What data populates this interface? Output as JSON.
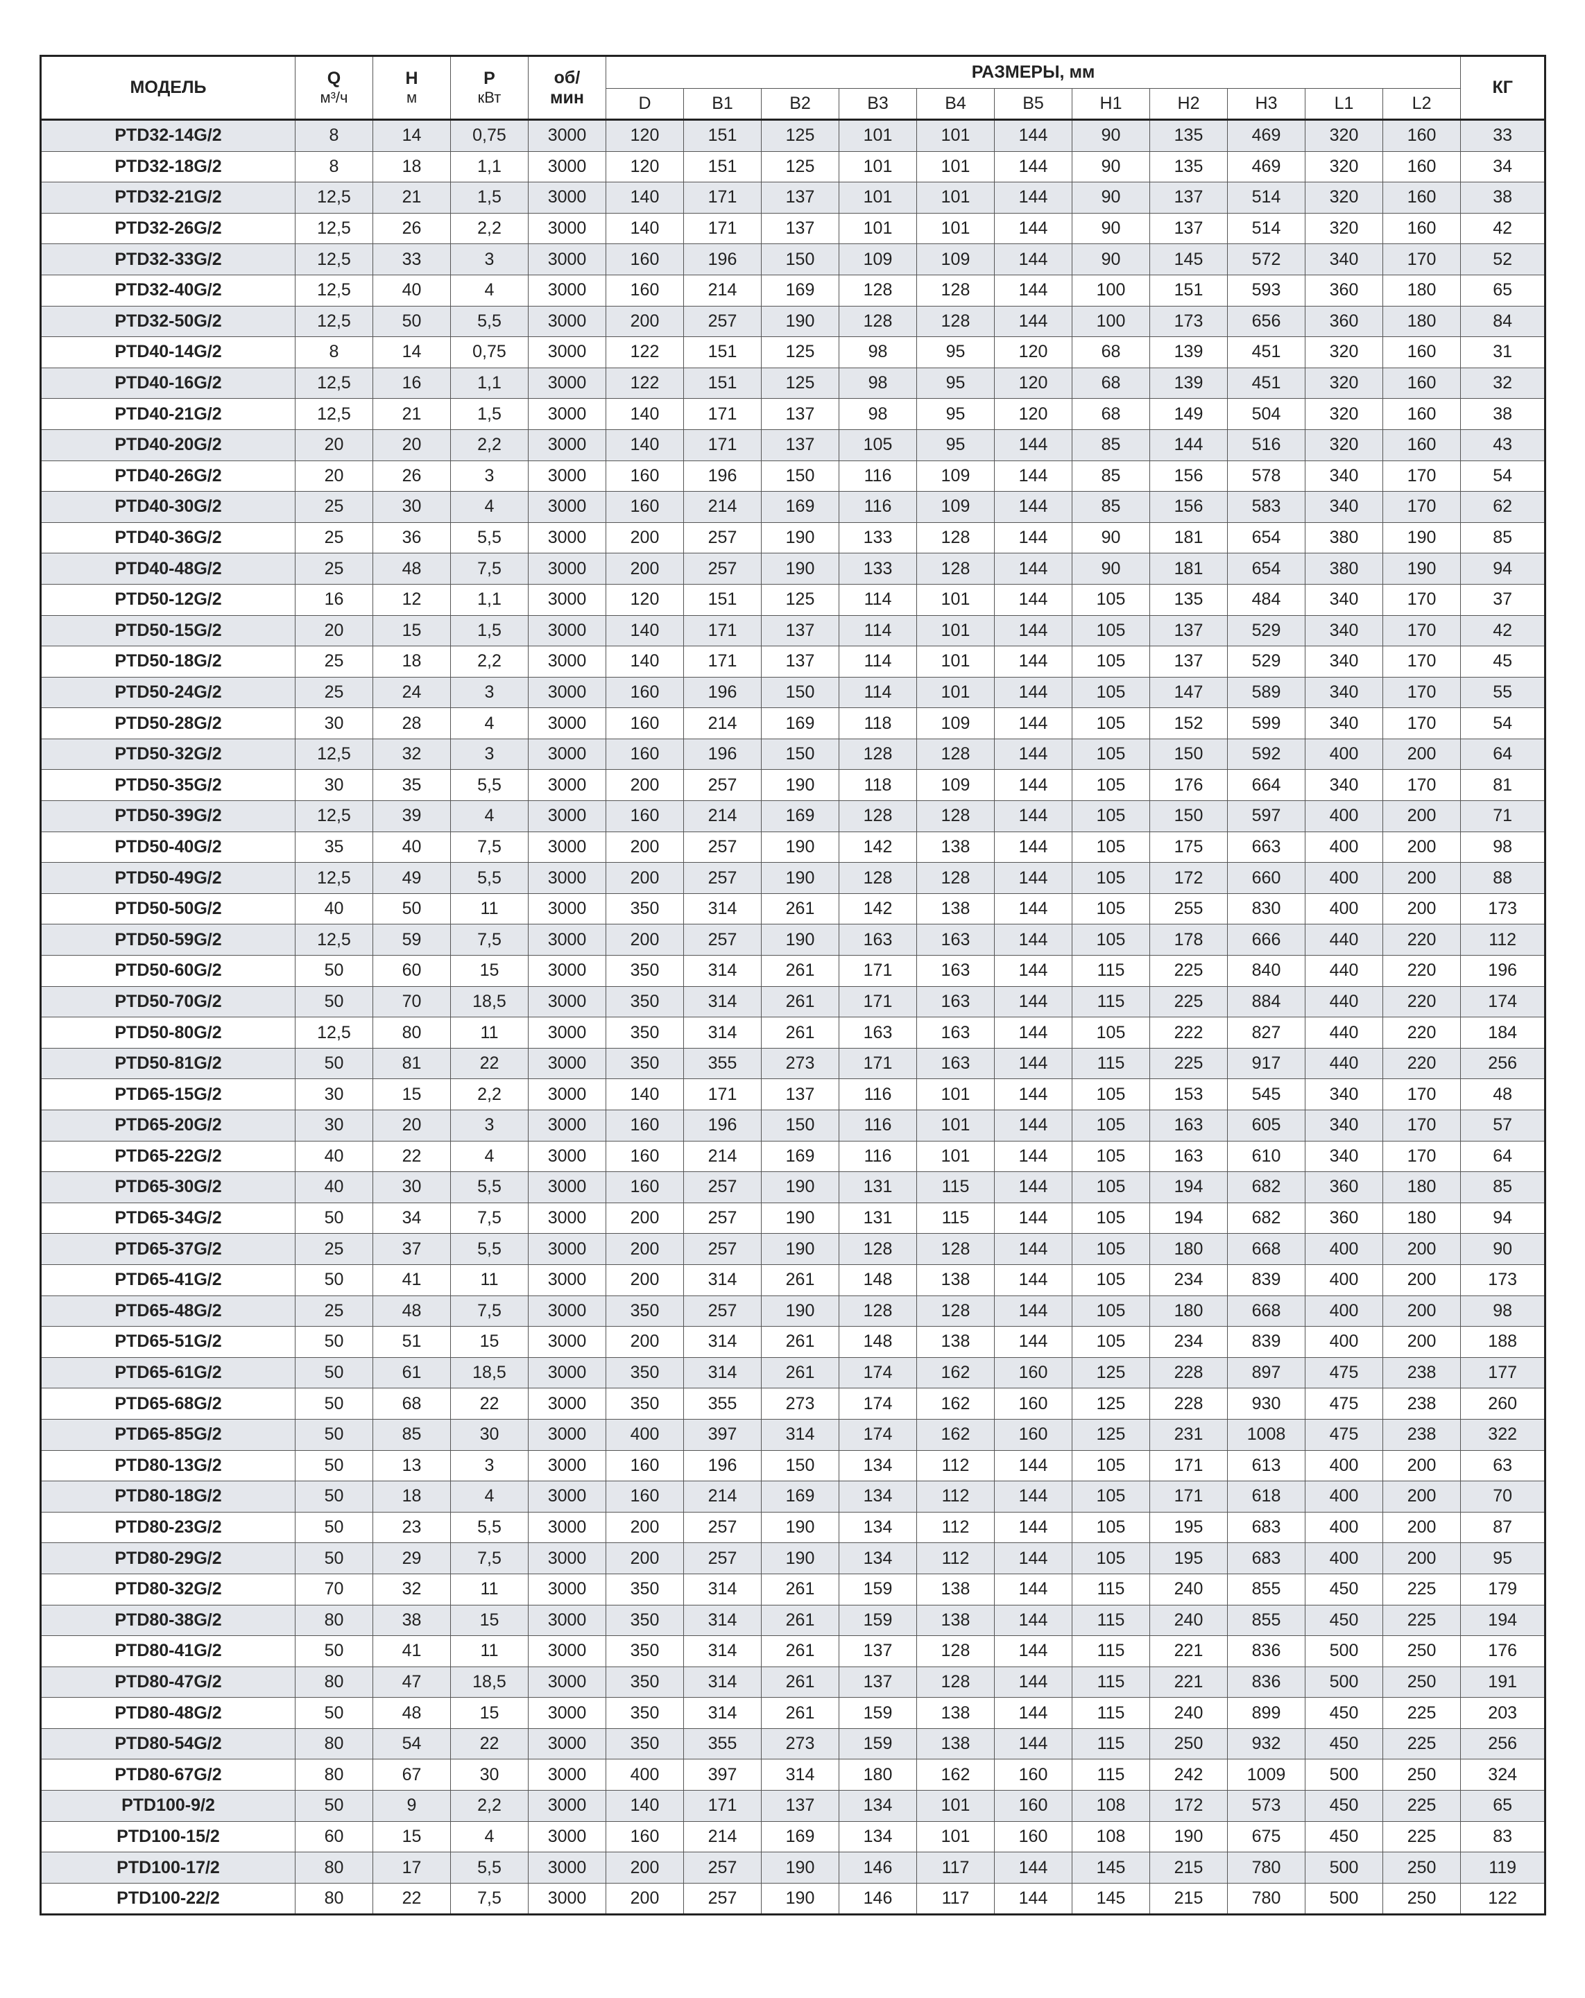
{
  "header": {
    "model": "МОДЕЛЬ",
    "q": "Q",
    "q_unit": "м³/ч",
    "h": "H",
    "h_unit": "м",
    "p": "P",
    "p_unit": "кВт",
    "rpm": "об/",
    "rpm_unit": "мин",
    "dims": "РАЗМЕРЫ, мм",
    "dim_columns": [
      "D",
      "B1",
      "B2",
      "B3",
      "B4",
      "B5",
      "H1",
      "H2",
      "H3",
      "L1",
      "L2"
    ],
    "kg": "КГ"
  },
  "table": {
    "rows": [
      [
        "PTD32-14G/2",
        "8",
        "14",
        "0,75",
        "3000",
        "120",
        "151",
        "125",
        "101",
        "101",
        "144",
        "90",
        "135",
        "469",
        "320",
        "160",
        "33"
      ],
      [
        "PTD32-18G/2",
        "8",
        "18",
        "1,1",
        "3000",
        "120",
        "151",
        "125",
        "101",
        "101",
        "144",
        "90",
        "135",
        "469",
        "320",
        "160",
        "34"
      ],
      [
        "PTD32-21G/2",
        "12,5",
        "21",
        "1,5",
        "3000",
        "140",
        "171",
        "137",
        "101",
        "101",
        "144",
        "90",
        "137",
        "514",
        "320",
        "160",
        "38"
      ],
      [
        "PTD32-26G/2",
        "12,5",
        "26",
        "2,2",
        "3000",
        "140",
        "171",
        "137",
        "101",
        "101",
        "144",
        "90",
        "137",
        "514",
        "320",
        "160",
        "42"
      ],
      [
        "PTD32-33G/2",
        "12,5",
        "33",
        "3",
        "3000",
        "160",
        "196",
        "150",
        "109",
        "109",
        "144",
        "90",
        "145",
        "572",
        "340",
        "170",
        "52"
      ],
      [
        "PTD32-40G/2",
        "12,5",
        "40",
        "4",
        "3000",
        "160",
        "214",
        "169",
        "128",
        "128",
        "144",
        "100",
        "151",
        "593",
        "360",
        "180",
        "65"
      ],
      [
        "PTD32-50G/2",
        "12,5",
        "50",
        "5,5",
        "3000",
        "200",
        "257",
        "190",
        "128",
        "128",
        "144",
        "100",
        "173",
        "656",
        "360",
        "180",
        "84"
      ],
      [
        "PTD40-14G/2",
        "8",
        "14",
        "0,75",
        "3000",
        "122",
        "151",
        "125",
        "98",
        "95",
        "120",
        "68",
        "139",
        "451",
        "320",
        "160",
        "31"
      ],
      [
        "PTD40-16G/2",
        "12,5",
        "16",
        "1,1",
        "3000",
        "122",
        "151",
        "125",
        "98",
        "95",
        "120",
        "68",
        "139",
        "451",
        "320",
        "160",
        "32"
      ],
      [
        "PTD40-21G/2",
        "12,5",
        "21",
        "1,5",
        "3000",
        "140",
        "171",
        "137",
        "98",
        "95",
        "120",
        "68",
        "149",
        "504",
        "320",
        "160",
        "38"
      ],
      [
        "PTD40-20G/2",
        "20",
        "20",
        "2,2",
        "3000",
        "140",
        "171",
        "137",
        "105",
        "95",
        "144",
        "85",
        "144",
        "516",
        "320",
        "160",
        "43"
      ],
      [
        "PTD40-26G/2",
        "20",
        "26",
        "3",
        "3000",
        "160",
        "196",
        "150",
        "116",
        "109",
        "144",
        "85",
        "156",
        "578",
        "340",
        "170",
        "54"
      ],
      [
        "PTD40-30G/2",
        "25",
        "30",
        "4",
        "3000",
        "160",
        "214",
        "169",
        "116",
        "109",
        "144",
        "85",
        "156",
        "583",
        "340",
        "170",
        "62"
      ],
      [
        "PTD40-36G/2",
        "25",
        "36",
        "5,5",
        "3000",
        "200",
        "257",
        "190",
        "133",
        "128",
        "144",
        "90",
        "181",
        "654",
        "380",
        "190",
        "85"
      ],
      [
        "PTD40-48G/2",
        "25",
        "48",
        "7,5",
        "3000",
        "200",
        "257",
        "190",
        "133",
        "128",
        "144",
        "90",
        "181",
        "654",
        "380",
        "190",
        "94"
      ],
      [
        "PTD50-12G/2",
        "16",
        "12",
        "1,1",
        "3000",
        "120",
        "151",
        "125",
        "114",
        "101",
        "144",
        "105",
        "135",
        "484",
        "340",
        "170",
        "37"
      ],
      [
        "PTD50-15G/2",
        "20",
        "15",
        "1,5",
        "3000",
        "140",
        "171",
        "137",
        "114",
        "101",
        "144",
        "105",
        "137",
        "529",
        "340",
        "170",
        "42"
      ],
      [
        "PTD50-18G/2",
        "25",
        "18",
        "2,2",
        "3000",
        "140",
        "171",
        "137",
        "114",
        "101",
        "144",
        "105",
        "137",
        "529",
        "340",
        "170",
        "45"
      ],
      [
        "PTD50-24G/2",
        "25",
        "24",
        "3",
        "3000",
        "160",
        "196",
        "150",
        "114",
        "101",
        "144",
        "105",
        "147",
        "589",
        "340",
        "170",
        "55"
      ],
      [
        "PTD50-28G/2",
        "30",
        "28",
        "4",
        "3000",
        "160",
        "214",
        "169",
        "118",
        "109",
        "144",
        "105",
        "152",
        "599",
        "340",
        "170",
        "54"
      ],
      [
        "PTD50-32G/2",
        "12,5",
        "32",
        "3",
        "3000",
        "160",
        "196",
        "150",
        "128",
        "128",
        "144",
        "105",
        "150",
        "592",
        "400",
        "200",
        "64"
      ],
      [
        "PTD50-35G/2",
        "30",
        "35",
        "5,5",
        "3000",
        "200",
        "257",
        "190",
        "118",
        "109",
        "144",
        "105",
        "176",
        "664",
        "340",
        "170",
        "81"
      ],
      [
        "PTD50-39G/2",
        "12,5",
        "39",
        "4",
        "3000",
        "160",
        "214",
        "169",
        "128",
        "128",
        "144",
        "105",
        "150",
        "597",
        "400",
        "200",
        "71"
      ],
      [
        "PTD50-40G/2",
        "35",
        "40",
        "7,5",
        "3000",
        "200",
        "257",
        "190",
        "142",
        "138",
        "144",
        "105",
        "175",
        "663",
        "400",
        "200",
        "98"
      ],
      [
        "PTD50-49G/2",
        "12,5",
        "49",
        "5,5",
        "3000",
        "200",
        "257",
        "190",
        "128",
        "128",
        "144",
        "105",
        "172",
        "660",
        "400",
        "200",
        "88"
      ],
      [
        "PTD50-50G/2",
        "40",
        "50",
        "11",
        "3000",
        "350",
        "314",
        "261",
        "142",
        "138",
        "144",
        "105",
        "255",
        "830",
        "400",
        "200",
        "173"
      ],
      [
        "PTD50-59G/2",
        "12,5",
        "59",
        "7,5",
        "3000",
        "200",
        "257",
        "190",
        "163",
        "163",
        "144",
        "105",
        "178",
        "666",
        "440",
        "220",
        "112"
      ],
      [
        "PTD50-60G/2",
        "50",
        "60",
        "15",
        "3000",
        "350",
        "314",
        "261",
        "171",
        "163",
        "144",
        "115",
        "225",
        "840",
        "440",
        "220",
        "196"
      ],
      [
        "PTD50-70G/2",
        "50",
        "70",
        "18,5",
        "3000",
        "350",
        "314",
        "261",
        "171",
        "163",
        "144",
        "115",
        "225",
        "884",
        "440",
        "220",
        "174"
      ],
      [
        "PTD50-80G/2",
        "12,5",
        "80",
        "11",
        "3000",
        "350",
        "314",
        "261",
        "163",
        "163",
        "144",
        "105",
        "222",
        "827",
        "440",
        "220",
        "184"
      ],
      [
        "PTD50-81G/2",
        "50",
        "81",
        "22",
        "3000",
        "350",
        "355",
        "273",
        "171",
        "163",
        "144",
        "115",
        "225",
        "917",
        "440",
        "220",
        "256"
      ],
      [
        "PTD65-15G/2",
        "30",
        "15",
        "2,2",
        "3000",
        "140",
        "171",
        "137",
        "116",
        "101",
        "144",
        "105",
        "153",
        "545",
        "340",
        "170",
        "48"
      ],
      [
        "PTD65-20G/2",
        "30",
        "20",
        "3",
        "3000",
        "160",
        "196",
        "150",
        "116",
        "101",
        "144",
        "105",
        "163",
        "605",
        "340",
        "170",
        "57"
      ],
      [
        "PTD65-22G/2",
        "40",
        "22",
        "4",
        "3000",
        "160",
        "214",
        "169",
        "116",
        "101",
        "144",
        "105",
        "163",
        "610",
        "340",
        "170",
        "64"
      ],
      [
        "PTD65-30G/2",
        "40",
        "30",
        "5,5",
        "3000",
        "160",
        "257",
        "190",
        "131",
        "115",
        "144",
        "105",
        "194",
        "682",
        "360",
        "180",
        "85"
      ],
      [
        "PTD65-34G/2",
        "50",
        "34",
        "7,5",
        "3000",
        "200",
        "257",
        "190",
        "131",
        "115",
        "144",
        "105",
        "194",
        "682",
        "360",
        "180",
        "94"
      ],
      [
        "PTD65-37G/2",
        "25",
        "37",
        "5,5",
        "3000",
        "200",
        "257",
        "190",
        "128",
        "128",
        "144",
        "105",
        "180",
        "668",
        "400",
        "200",
        "90"
      ],
      [
        "PTD65-41G/2",
        "50",
        "41",
        "11",
        "3000",
        "200",
        "314",
        "261",
        "148",
        "138",
        "144",
        "105",
        "234",
        "839",
        "400",
        "200",
        "173"
      ],
      [
        "PTD65-48G/2",
        "25",
        "48",
        "7,5",
        "3000",
        "350",
        "257",
        "190",
        "128",
        "128",
        "144",
        "105",
        "180",
        "668",
        "400",
        "200",
        "98"
      ],
      [
        "PTD65-51G/2",
        "50",
        "51",
        "15",
        "3000",
        "200",
        "314",
        "261",
        "148",
        "138",
        "144",
        "105",
        "234",
        "839",
        "400",
        "200",
        "188"
      ],
      [
        "PTD65-61G/2",
        "50",
        "61",
        "18,5",
        "3000",
        "350",
        "314",
        "261",
        "174",
        "162",
        "160",
        "125",
        "228",
        "897",
        "475",
        "238",
        "177"
      ],
      [
        "PTD65-68G/2",
        "50",
        "68",
        "22",
        "3000",
        "350",
        "355",
        "273",
        "174",
        "162",
        "160",
        "125",
        "228",
        "930",
        "475",
        "238",
        "260"
      ],
      [
        "PTD65-85G/2",
        "50",
        "85",
        "30",
        "3000",
        "400",
        "397",
        "314",
        "174",
        "162",
        "160",
        "125",
        "231",
        "1008",
        "475",
        "238",
        "322"
      ],
      [
        "PTD80-13G/2",
        "50",
        "13",
        "3",
        "3000",
        "160",
        "196",
        "150",
        "134",
        "112",
        "144",
        "105",
        "171",
        "613",
        "400",
        "200",
        "63"
      ],
      [
        "PTD80-18G/2",
        "50",
        "18",
        "4",
        "3000",
        "160",
        "214",
        "169",
        "134",
        "112",
        "144",
        "105",
        "171",
        "618",
        "400",
        "200",
        "70"
      ],
      [
        "PTD80-23G/2",
        "50",
        "23",
        "5,5",
        "3000",
        "200",
        "257",
        "190",
        "134",
        "112",
        "144",
        "105",
        "195",
        "683",
        "400",
        "200",
        "87"
      ],
      [
        "PTD80-29G/2",
        "50",
        "29",
        "7,5",
        "3000",
        "200",
        "257",
        "190",
        "134",
        "112",
        "144",
        "105",
        "195",
        "683",
        "400",
        "200",
        "95"
      ],
      [
        "PTD80-32G/2",
        "70",
        "32",
        "11",
        "3000",
        "350",
        "314",
        "261",
        "159",
        "138",
        "144",
        "115",
        "240",
        "855",
        "450",
        "225",
        "179"
      ],
      [
        "PTD80-38G/2",
        "80",
        "38",
        "15",
        "3000",
        "350",
        "314",
        "261",
        "159",
        "138",
        "144",
        "115",
        "240",
        "855",
        "450",
        "225",
        "194"
      ],
      [
        "PTD80-41G/2",
        "50",
        "41",
        "11",
        "3000",
        "350",
        "314",
        "261",
        "137",
        "128",
        "144",
        "115",
        "221",
        "836",
        "500",
        "250",
        "176"
      ],
      [
        "PTD80-47G/2",
        "80",
        "47",
        "18,5",
        "3000",
        "350",
        "314",
        "261",
        "137",
        "128",
        "144",
        "115",
        "221",
        "836",
        "500",
        "250",
        "191"
      ],
      [
        "PTD80-48G/2",
        "50",
        "48",
        "15",
        "3000",
        "350",
        "314",
        "261",
        "159",
        "138",
        "144",
        "115",
        "240",
        "899",
        "450",
        "225",
        "203"
      ],
      [
        "PTD80-54G/2",
        "80",
        "54",
        "22",
        "3000",
        "350",
        "355",
        "273",
        "159",
        "138",
        "144",
        "115",
        "250",
        "932",
        "450",
        "225",
        "256"
      ],
      [
        "PTD80-67G/2",
        "80",
        "67",
        "30",
        "3000",
        "400",
        "397",
        "314",
        "180",
        "162",
        "160",
        "115",
        "242",
        "1009",
        "500",
        "250",
        "324"
      ],
      [
        "PTD100-9/2",
        "50",
        "9",
        "2,2",
        "3000",
        "140",
        "171",
        "137",
        "134",
        "101",
        "160",
        "108",
        "172",
        "573",
        "450",
        "225",
        "65"
      ],
      [
        "PTD100-15/2",
        "60",
        "15",
        "4",
        "3000",
        "160",
        "214",
        "169",
        "134",
        "101",
        "160",
        "108",
        "190",
        "675",
        "450",
        "225",
        "83"
      ],
      [
        "PTD100-17/2",
        "80",
        "17",
        "5,5",
        "3000",
        "200",
        "257",
        "190",
        "146",
        "117",
        "144",
        "145",
        "215",
        "780",
        "500",
        "250",
        "119"
      ],
      [
        "PTD100-22/2",
        "80",
        "22",
        "7,5",
        "3000",
        "200",
        "257",
        "190",
        "146",
        "117",
        "144",
        "145",
        "215",
        "780",
        "500",
        "250",
        "122"
      ]
    ]
  }
}
